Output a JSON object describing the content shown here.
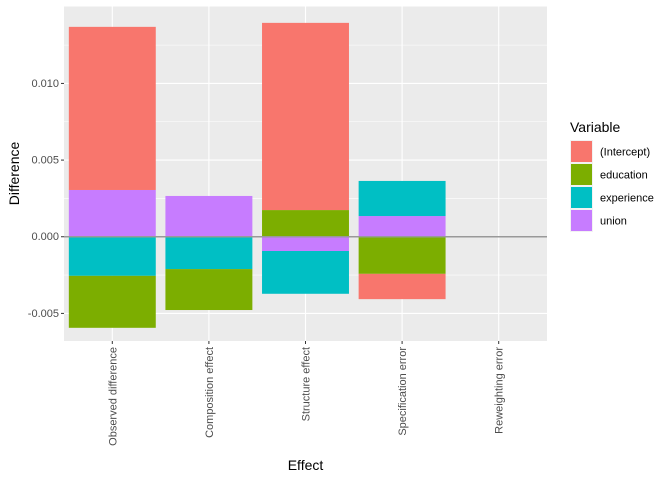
{
  "chart_data": {
    "type": "bar",
    "stacked": true,
    "xlabel": "Effect",
    "ylabel": "Difference",
    "categories": [
      "Observed difference",
      "Composition effect",
      "Structure effect",
      "Specification error",
      "Reweighting error"
    ],
    "ylim": [
      -0.0068,
      0.01505
    ],
    "yticks": [
      -0.005,
      0.0,
      0.005,
      0.01
    ],
    "ytick_labels": [
      "-0.005",
      "0.000",
      "0.005",
      "0.010"
    ],
    "grid": true,
    "legend": {
      "title": "Variable",
      "position": "right",
      "entries": [
        "(Intercept)",
        "education",
        "experience",
        "union"
      ]
    },
    "colors": {
      "(Intercept)": "#F8766D",
      "education": "#7CAE00",
      "experience": "#00BFC4",
      "union": "#C77CFF"
    },
    "bars": [
      {
        "category": "Observed difference",
        "segments": [
          {
            "variable": "union",
            "value": 0.00305
          },
          {
            "variable": "(Intercept)",
            "value": 0.01064
          },
          {
            "variable": "experience",
            "value": -0.00255
          },
          {
            "variable": "education",
            "value": -0.00339
          }
        ]
      },
      {
        "category": "Composition effect",
        "segments": [
          {
            "variable": "union",
            "value": 0.00266
          },
          {
            "variable": "experience",
            "value": -0.00211
          },
          {
            "variable": "education",
            "value": -0.00267
          }
        ]
      },
      {
        "category": "Structure effect",
        "segments": [
          {
            "variable": "education",
            "value": 0.00174
          },
          {
            "variable": "(Intercept)",
            "value": 0.01221
          },
          {
            "variable": "union",
            "value": -0.00093
          },
          {
            "variable": "experience",
            "value": -0.00279
          }
        ]
      },
      {
        "category": "Specification error",
        "segments": [
          {
            "variable": "union",
            "value": 0.00135
          },
          {
            "variable": "experience",
            "value": 0.00229
          },
          {
            "variable": "education",
            "value": -0.00242
          },
          {
            "variable": "(Intercept)",
            "value": -0.00165
          }
        ]
      },
      {
        "category": "Reweighting error",
        "segments": []
      }
    ]
  }
}
